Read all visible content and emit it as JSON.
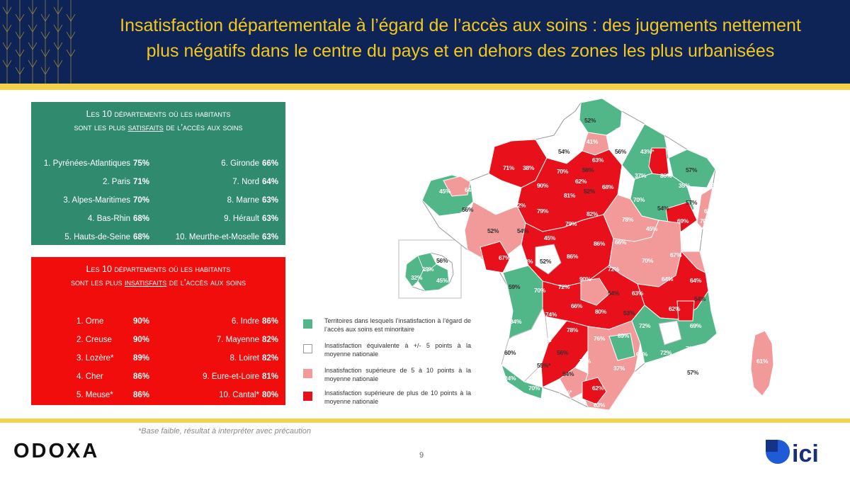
{
  "header": {
    "title_line1": "Insatisfaction départementale à l’égard de l’accès aux soins : des  jugements nettement",
    "title_line2": "plus négatifs dans le centre du pays et en dehors des zones les plus urbanisées"
  },
  "satisfied": {
    "title_a": "Les 10 départements où les habitants",
    "title_b_pre": "sont les plus ",
    "title_b_em": "satisfaits",
    "title_b_post": " de l’accès aux soins",
    "rows": [
      {
        "left_name": "1. Pyrénées-Atlantiques",
        "left_value": "75%",
        "right_name": "6. Gironde",
        "right_value": "66%"
      },
      {
        "left_name": "2. Paris",
        "left_value": "71%",
        "right_name": "7. Nord",
        "right_value": "64%"
      },
      {
        "left_name": "3. Alpes-Maritimes",
        "left_value": "70%",
        "right_name": "8. Marne",
        "right_value": "63%"
      },
      {
        "left_name": "4. Bas-Rhin",
        "left_value": "68%",
        "right_name": "9. Hérault",
        "right_value": "63%"
      },
      {
        "left_name": "5. Hauts-de-Seine",
        "left_value": "68%",
        "right_name": "10. Meurthe-et-Moselle",
        "right_value": "63%"
      }
    ]
  },
  "unsatisfied": {
    "title_a": "Les 10 départements où les habitants",
    "title_b_pre": "sont les plus ",
    "title_b_em": "insatisfaits",
    "title_b_post": " de l’accès aux soins",
    "rows": [
      {
        "left_name": "1.   Orne",
        "left_value": "90%",
        "right_name": "6. Indre",
        "right_value": "86%"
      },
      {
        "left_name": "2. Creuse",
        "left_value": "90%",
        "right_name": "7. Mayenne",
        "right_value": "82%"
      },
      {
        "left_name": "3. Lozère*",
        "left_value": "89%",
        "right_name": "8. Loiret",
        "right_value": "82%"
      },
      {
        "left_name": "4. Cher",
        "left_value": "86%",
        "right_name": "9. Eure-et-Loire",
        "right_value": "81%"
      },
      {
        "left_name": "5. Meuse*",
        "left_value": "86%",
        "right_name": "10. Cantal*",
        "right_value": "80%"
      }
    ]
  },
  "legend": [
    {
      "color": "#52b788",
      "text": "Territoires dans lesquels l’insatisfaction à l’égard de l’accès aux soins est minoritaire"
    },
    {
      "color": "#ffffff",
      "text": "Insatisfaction équivalente à +/- 5 points à la moyenne nationale"
    },
    {
      "color": "#f29a9a",
      "text": "Insatisfaction supérieure de 5 à 10 points à la moyenne nationale"
    },
    {
      "color": "#e8101a",
      "text": "Insatisfaction supérieure de plus de 10 points à la moyenne nationale"
    }
  ],
  "map_labels": [
    {
      "text": "52%",
      "cat": "white"
    },
    {
      "text": "36%",
      "cat": "green"
    },
    {
      "text": "41%",
      "cat": "green"
    },
    {
      "text": "54%",
      "cat": "white"
    },
    {
      "text": "56%",
      "cat": "white"
    },
    {
      "text": "43%*",
      "cat": "green"
    },
    {
      "text": "71%",
      "cat": "red"
    },
    {
      "text": "38%",
      "cat": "green"
    },
    {
      "text": "70%",
      "cat": "red"
    },
    {
      "text": "63%",
      "cat": "pink"
    },
    {
      "text": "56%",
      "cat": "white"
    },
    {
      "text": "62%",
      "cat": "pink"
    },
    {
      "text": "37%",
      "cat": "green"
    },
    {
      "text": "86%",
      "cat": "red"
    },
    {
      "text": "57%",
      "cat": "white"
    },
    {
      "text": "45%",
      "cat": "green"
    },
    {
      "text": "64%",
      "cat": "pink"
    },
    {
      "text": "90%",
      "cat": "red"
    },
    {
      "text": "81%",
      "cat": "red"
    },
    {
      "text": "52%",
      "cat": "white"
    },
    {
      "text": "68%",
      "cat": "red"
    },
    {
      "text": "35%",
      "cat": "green"
    },
    {
      "text": "31%",
      "cat": "green"
    },
    {
      "text": "56%",
      "cat": "white"
    },
    {
      "text": "46%",
      "cat": "green"
    },
    {
      "text": "82%",
      "cat": "red"
    },
    {
      "text": "79%",
      "cat": "red"
    },
    {
      "text": "82%",
      "cat": "red"
    },
    {
      "text": "70%",
      "cat": "pink"
    },
    {
      "text": "54%",
      "cat": "white"
    },
    {
      "text": "57%",
      "cat": "white"
    },
    {
      "text": "63%",
      "cat": "pink"
    },
    {
      "text": "52%",
      "cat": "white"
    },
    {
      "text": "54%",
      "cat": "white"
    },
    {
      "text": "79%",
      "cat": "red"
    },
    {
      "text": "78%",
      "cat": "red"
    },
    {
      "text": "45%",
      "cat": "green"
    },
    {
      "text": "69%",
      "cat": "red"
    },
    {
      "text": "70%",
      "cat": "red"
    },
    {
      "text": "45%",
      "cat": "green"
    },
    {
      "text": "86%",
      "cat": "red"
    },
    {
      "text": "86%",
      "cat": "red"
    },
    {
      "text": "66%",
      "cat": "pink"
    },
    {
      "text": "45%",
      "cat": "green"
    },
    {
      "text": "67%",
      "cat": "red"
    },
    {
      "text": "73%",
      "cat": "red"
    },
    {
      "text": "52%",
      "cat": "white"
    },
    {
      "text": "72%",
      "cat": "red"
    },
    {
      "text": "70%",
      "cat": "pink"
    },
    {
      "text": "67%",
      "cat": "pink"
    },
    {
      "text": "59%",
      "cat": "white"
    },
    {
      "text": "72%",
      "cat": "red"
    },
    {
      "text": "90%",
      "cat": "red"
    },
    {
      "text": "64%",
      "cat": "pink"
    },
    {
      "text": "64%",
      "cat": "pink"
    },
    {
      "text": "70%",
      "cat": "red"
    },
    {
      "text": "54%",
      "cat": "white"
    },
    {
      "text": "63%",
      "cat": "pink"
    },
    {
      "text": "54%",
      "cat": "white"
    },
    {
      "text": "74%",
      "cat": "red"
    },
    {
      "text": "66%",
      "cat": "pink"
    },
    {
      "text": "80%",
      "cat": "red"
    },
    {
      "text": "53%",
      "cat": "white"
    },
    {
      "text": "62%",
      "cat": "pink"
    },
    {
      "text": "34%",
      "cat": "green"
    },
    {
      "text": "78%",
      "cat": "red"
    },
    {
      "text": "72%",
      "cat": "red"
    },
    {
      "text": "68%",
      "cat": "red"
    },
    {
      "text": "69%",
      "cat": "red"
    },
    {
      "text": "77%",
      "cat": "red"
    },
    {
      "text": "76%",
      "cat": "red"
    },
    {
      "text": "89%",
      "cat": "red"
    },
    {
      "text": "60%",
      "cat": "white"
    },
    {
      "text": "56%",
      "cat": "white"
    },
    {
      "text": "64%",
      "cat": "pink"
    },
    {
      "text": "72%",
      "cat": "red"
    },
    {
      "text": "71%",
      "cat": "red"
    },
    {
      "text": "25%",
      "cat": "green"
    },
    {
      "text": "55%*",
      "cat": "white"
    },
    {
      "text": "74%",
      "cat": "red"
    },
    {
      "text": "37%",
      "cat": "green"
    },
    {
      "text": "45%",
      "cat": "green"
    },
    {
      "text": "57%",
      "cat": "white"
    },
    {
      "text": "54%",
      "cat": "white"
    },
    {
      "text": "24%",
      "cat": "green"
    },
    {
      "text": "70%",
      "cat": "pink"
    },
    {
      "text": "62%",
      "cat": "pink"
    },
    {
      "text": "74%*",
      "cat": "red"
    },
    {
      "text": "63%",
      "cat": "pink"
    },
    {
      "text": "61%",
      "cat": "pink"
    },
    {
      "text": "56%",
      "cat": "white"
    },
    {
      "text": "29%",
      "cat": "green"
    },
    {
      "text": "32%",
      "cat": "green"
    },
    {
      "text": "45%",
      "cat": "green"
    }
  ],
  "footer": {
    "footnote": "*Base faible, résultat à interpréter avec précaution",
    "page_number": "9",
    "left_logo": "ODOXA",
    "right_logo": "ici"
  },
  "colors": {
    "navy": "#0f2456",
    "gold": "#f2c81e",
    "green": "#2f8a6e",
    "red": "#f20d0d"
  }
}
